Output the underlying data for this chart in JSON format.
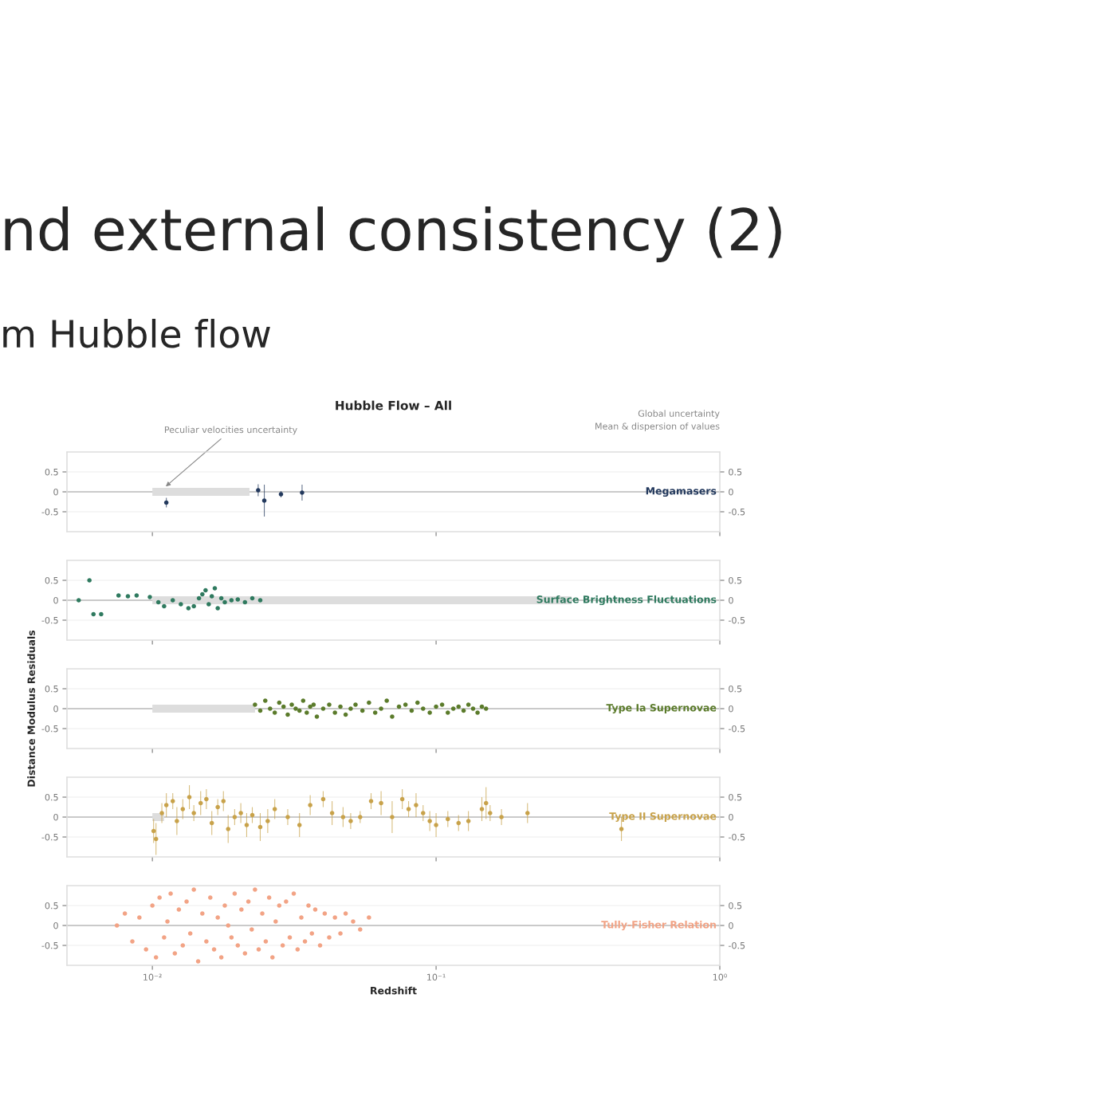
{
  "chart_data": [
    {
      "type": "other",
      "title": "nd external consistency (2)",
      "subtitle": "m Hubble flow"
    },
    {
      "type": "scatter",
      "title": "Hubble Flow – All",
      "annotations": [
        "Global uncertainty",
        "Mean & dispersion of values"
      ],
      "log": "x",
      "xlim": [
        0.005,
        1
      ],
      "xticks": [
        {
          "value": 0.01,
          "label": null
        },
        {
          "value": 0.1,
          "label": null
        },
        {
          "value": 1,
          "label": null
        }
      ],
      "ylim": [
        -1,
        1
      ],
      "yticks": [
        -0.5,
        0,
        0.5
      ],
      "y2lim": [
        -1,
        1
      ],
      "y2ticks": [
        -0.5,
        0,
        0.5
      ],
      "tick_labels": "y",
      "grid": "y",
      "marker": "circle",
      "ref_lines": [
        {
          "axis": "y",
          "value": 0,
          "color": "#bbbbbb"
        }
      ],
      "bands": [
        {
          "axis": "x",
          "from": 0.01,
          "to": 0.022,
          "color": "#dddddd",
          "label": "Peculiar velocities uncertainty"
        }
      ],
      "series": [
        {
          "name": "Megamasers",
          "color": "#23395d",
          "x": [
            0.0112,
            0.0236,
            0.0248,
            0.0284,
            0.0337
          ],
          "values": [
            -0.27,
            0.04,
            -0.22,
            -0.06,
            -0.02
          ],
          "errors": [
            0.12,
            0.15,
            0.4,
            0.08,
            0.2
          ]
        }
      ]
    },
    {
      "type": "scatter",
      "log": "x",
      "xlim": [
        0.005,
        1
      ],
      "xticks": [
        {
          "value": 0.01,
          "label": null
        },
        {
          "value": 0.1,
          "label": null
        },
        {
          "value": 1,
          "label": null
        }
      ],
      "ylim": [
        -1,
        1
      ],
      "yticks": [
        -0.5,
        0,
        0.5
      ],
      "y2lim": [
        -1,
        1
      ],
      "y2ticks": [
        -0.5,
        0,
        0.5
      ],
      "tick_labels": "y",
      "grid": "y",
      "marker": "circle",
      "ref_lines": [
        {
          "axis": "y",
          "value": 0,
          "color": "#bbbbbb"
        }
      ],
      "bands": [
        {
          "axis": "x",
          "from": 0.01,
          "to": 0.3,
          "color": "#dddddd"
        }
      ],
      "series": [
        {
          "name": "Surface Brightness Fluctuations",
          "color": "#2f7a5f",
          "x": [
            0.0055,
            0.006,
            0.0062,
            0.0066,
            0.0076,
            0.0082,
            0.0088,
            0.0098,
            0.0105,
            0.011,
            0.0118,
            0.0126,
            0.0134,
            0.014,
            0.0146,
            0.015,
            0.0154,
            0.0158,
            0.0162,
            0.0166,
            0.017,
            0.0175,
            0.018,
            0.019,
            0.02,
            0.0212,
            0.0225,
            0.024
          ],
          "values": [
            0.0,
            0.5,
            -0.35,
            -0.35,
            0.12,
            0.1,
            0.12,
            0.08,
            -0.05,
            -0.15,
            0.0,
            -0.1,
            -0.2,
            -0.15,
            0.05,
            0.15,
            0.25,
            -0.1,
            0.1,
            0.3,
            -0.2,
            0.05,
            -0.05,
            0.0,
            0.02,
            -0.05,
            0.05,
            0.0
          ]
        }
      ]
    },
    {
      "type": "scatter",
      "ylabel": "Distance Modulus Residuals",
      "log": "x",
      "xlim": [
        0.005,
        1
      ],
      "xticks": [
        {
          "value": 0.01,
          "label": null
        },
        {
          "value": 0.1,
          "label": null
        },
        {
          "value": 1,
          "label": null
        }
      ],
      "ylim": [
        -1,
        1
      ],
      "yticks": [
        -0.5,
        0,
        0.5
      ],
      "y2lim": [
        -1,
        1
      ],
      "y2ticks": [
        -0.5,
        0,
        0.5
      ],
      "tick_labels": "y",
      "grid": "y",
      "marker": "circle",
      "ref_lines": [
        {
          "axis": "y",
          "value": 0,
          "color": "#bbbbbb"
        }
      ],
      "bands": [
        {
          "axis": "x",
          "from": 0.01,
          "to": 0.023,
          "color": "#dddddd"
        }
      ],
      "series": [
        {
          "name": "Type Ia Supernovae",
          "color": "#5b7b2b",
          "x": [
            0.023,
            0.024,
            0.025,
            0.026,
            0.027,
            0.028,
            0.029,
            0.03,
            0.031,
            0.032,
            0.033,
            0.034,
            0.035,
            0.036,
            0.037,
            0.038,
            0.04,
            0.042,
            0.044,
            0.046,
            0.048,
            0.05,
            0.052,
            0.055,
            0.058,
            0.061,
            0.064,
            0.067,
            0.07,
            0.074,
            0.078,
            0.082,
            0.086,
            0.09,
            0.095,
            0.1,
            0.105,
            0.11,
            0.115,
            0.12,
            0.125,
            0.13,
            0.135,
            0.14,
            0.145,
            0.15
          ],
          "values": [
            0.1,
            -0.05,
            0.2,
            0.0,
            -0.1,
            0.15,
            0.05,
            -0.15,
            0.1,
            0.0,
            -0.05,
            0.2,
            -0.1,
            0.05,
            0.1,
            -0.2,
            0.0,
            0.1,
            -0.1,
            0.05,
            -0.15,
            0.0,
            0.1,
            -0.05,
            0.15,
            -0.1,
            0.0,
            0.2,
            -0.2,
            0.05,
            0.1,
            -0.05,
            0.15,
            0.0,
            -0.1,
            0.05,
            0.1,
            -0.1,
            0.0,
            0.05,
            -0.05,
            0.1,
            0.0,
            -0.1,
            0.05,
            0.0
          ]
        }
      ]
    },
    {
      "type": "scatter",
      "log": "x",
      "xlim": [
        0.005,
        1
      ],
      "xticks": [
        {
          "value": 0.01,
          "label": null
        },
        {
          "value": 0.1,
          "label": null
        },
        {
          "value": 1,
          "label": null
        }
      ],
      "ylim": [
        -1,
        1
      ],
      "yticks": [
        -0.5,
        0,
        0.5
      ],
      "y2lim": [
        -1,
        1
      ],
      "y2ticks": [
        -0.5,
        0,
        0.5
      ],
      "tick_labels": "y",
      "grid": "y",
      "marker": "circle",
      "ref_lines": [
        {
          "axis": "y",
          "value": 0,
          "color": "#bbbbbb"
        }
      ],
      "bands": [
        {
          "axis": "x",
          "from": 0.01,
          "to": 0.011,
          "color": "#dddddd"
        }
      ],
      "series": [
        {
          "name": "Type II Supernovae",
          "color": "#c8a24a",
          "x": [
            0.0101,
            0.0103,
            0.0108,
            0.0112,
            0.0118,
            0.0122,
            0.0128,
            0.0135,
            0.014,
            0.0148,
            0.0155,
            0.0162,
            0.017,
            0.0178,
            0.0185,
            0.0195,
            0.0205,
            0.0215,
            0.0225,
            0.024,
            0.0255,
            0.027,
            0.03,
            0.033,
            0.036,
            0.04,
            0.043,
            0.047,
            0.05,
            0.054,
            0.059,
            0.064,
            0.07,
            0.076,
            0.08,
            0.085,
            0.09,
            0.095,
            0.1,
            0.11,
            0.12,
            0.13,
            0.145,
            0.15,
            0.155,
            0.17,
            0.21,
            0.45
          ],
          "values": [
            -0.35,
            -0.55,
            0.1,
            0.3,
            0.4,
            -0.1,
            0.2,
            0.5,
            0.1,
            0.35,
            0.45,
            -0.15,
            0.25,
            0.4,
            -0.3,
            0.0,
            0.1,
            -0.2,
            0.05,
            -0.25,
            -0.1,
            0.2,
            0.0,
            -0.2,
            0.3,
            0.45,
            0.1,
            0.0,
            -0.1,
            0.0,
            0.4,
            0.35,
            0.0,
            0.45,
            0.2,
            0.3,
            0.1,
            -0.1,
            -0.2,
            -0.05,
            -0.15,
            -0.1,
            0.2,
            0.35,
            0.1,
            0.0,
            0.1,
            -0.3
          ],
          "errors": [
            0.3,
            0.4,
            0.25,
            0.3,
            0.2,
            0.35,
            0.25,
            0.3,
            0.2,
            0.3,
            0.25,
            0.3,
            0.2,
            0.25,
            0.35,
            0.2,
            0.25,
            0.3,
            0.2,
            0.35,
            0.3,
            0.25,
            0.2,
            0.3,
            0.25,
            0.2,
            0.3,
            0.25,
            0.2,
            0.15,
            0.2,
            0.3,
            0.4,
            0.25,
            0.2,
            0.3,
            0.2,
            0.25,
            0.3,
            0.2,
            0.2,
            0.25,
            0.3,
            0.4,
            0.2,
            0.2,
            0.25,
            0.3
          ]
        }
      ]
    },
    {
      "type": "scatter",
      "xlabel": "Redshift",
      "log": "x",
      "xlim": [
        0.005,
        1
      ],
      "xticks": [
        {
          "value": 0.01,
          "label": "10⁻²"
        },
        {
          "value": 0.1,
          "label": "10⁻¹"
        },
        {
          "value": 1,
          "label": "10⁰"
        }
      ],
      "ylim": [
        -1,
        1
      ],
      "yticks": [
        -0.5,
        0,
        0.5
      ],
      "y2lim": [
        -1,
        1
      ],
      "y2ticks": [
        -0.5,
        0,
        0.5
      ],
      "grid": "y",
      "marker": "circle",
      "ref_lines": [
        {
          "axis": "y",
          "value": 0,
          "color": "#bbbbbb"
        }
      ],
      "series": [
        {
          "name": "Tully-Fisher Relation",
          "color": "#f2a385",
          "x": [
            0.0075,
            0.008,
            0.0085,
            0.009,
            0.0095,
            0.01,
            0.0103,
            0.0106,
            0.011,
            0.0113,
            0.0116,
            0.012,
            0.0124,
            0.0128,
            0.0132,
            0.0136,
            0.014,
            0.0145,
            0.015,
            0.0155,
            0.016,
            0.0165,
            0.017,
            0.0175,
            0.018,
            0.0185,
            0.019,
            0.0195,
            0.02,
            0.0206,
            0.0212,
            0.0218,
            0.0224,
            0.023,
            0.0237,
            0.0244,
            0.0251,
            0.0258,
            0.0265,
            0.0272,
            0.028,
            0.0288,
            0.0296,
            0.0305,
            0.0315,
            0.0325,
            0.0335,
            0.0345,
            0.0355,
            0.0365,
            0.0375,
            0.039,
            0.0405,
            0.042,
            0.044,
            0.046,
            0.048,
            0.051,
            0.054,
            0.058
          ],
          "values": [
            0.0,
            0.3,
            -0.4,
            0.2,
            -0.6,
            0.5,
            -0.8,
            0.7,
            -0.3,
            0.1,
            0.8,
            -0.7,
            0.4,
            -0.5,
            0.6,
            -0.2,
            0.9,
            -0.9,
            0.3,
            -0.4,
            0.7,
            -0.6,
            0.2,
            -0.8,
            0.5,
            0.0,
            -0.3,
            0.8,
            -0.5,
            0.4,
            -0.7,
            0.6,
            -0.1,
            0.9,
            -0.6,
            0.3,
            -0.4,
            0.7,
            -0.8,
            0.1,
            0.5,
            -0.5,
            0.6,
            -0.3,
            0.8,
            -0.6,
            0.2,
            -0.4,
            0.5,
            -0.2,
            0.4,
            -0.5,
            0.3,
            -0.3,
            0.2,
            -0.2,
            0.3,
            0.1,
            -0.1,
            0.2
          ]
        }
      ]
    }
  ]
}
